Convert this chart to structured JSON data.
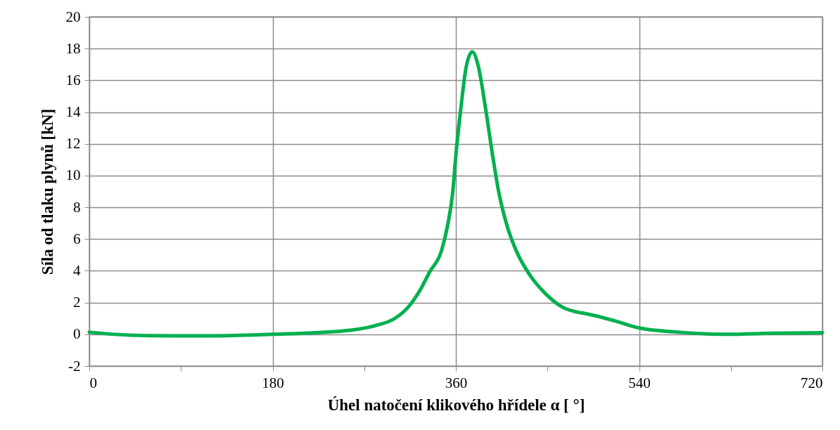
{
  "chart_data": {
    "type": "line",
    "xlabel": "Úhel natočení klikového hřídele α [ °]",
    "ylabel": "Síla od tlaku plynů [kN]",
    "x": [
      0,
      39,
      80,
      120,
      180,
      235,
      258,
      281,
      300,
      313,
      325,
      334,
      346,
      352,
      357,
      360,
      365,
      370,
      376,
      382,
      389,
      396,
      402,
      410,
      419,
      433,
      449,
      465,
      479,
      488,
      516,
      540,
      580,
      626,
      672,
      720
    ],
    "series": [
      {
        "color": "#00b050",
        "values": [
          0.13,
          -0.05,
          -0.1,
          -0.1,
          0.0,
          0.15,
          0.27,
          0.55,
          1.0,
          1.7,
          2.8,
          3.9,
          5.3,
          6.9,
          9.0,
          11.3,
          14.3,
          16.8,
          17.8,
          16.9,
          14.3,
          11.3,
          9.0,
          6.9,
          5.3,
          3.7,
          2.5,
          1.7,
          1.4,
          1.3,
          0.85,
          0.4,
          0.13,
          0.0,
          0.07,
          0.1
        ]
      }
    ],
    "xlim": [
      0,
      720
    ],
    "xticks": [
      0,
      {
        "value": 90,
        "label": null
      },
      180,
      {
        "value": 270,
        "label": null
      },
      360,
      {
        "value": 450,
        "label": null
      },
      540,
      {
        "value": 630,
        "label": null
      },
      720
    ],
    "ylim": [
      -2,
      20
    ],
    "yticks": [
      -2,
      0,
      2,
      4,
      6,
      8,
      10,
      12,
      14,
      16,
      18,
      20
    ],
    "grid": true,
    "line_style": "solid",
    "marker": "none"
  }
}
